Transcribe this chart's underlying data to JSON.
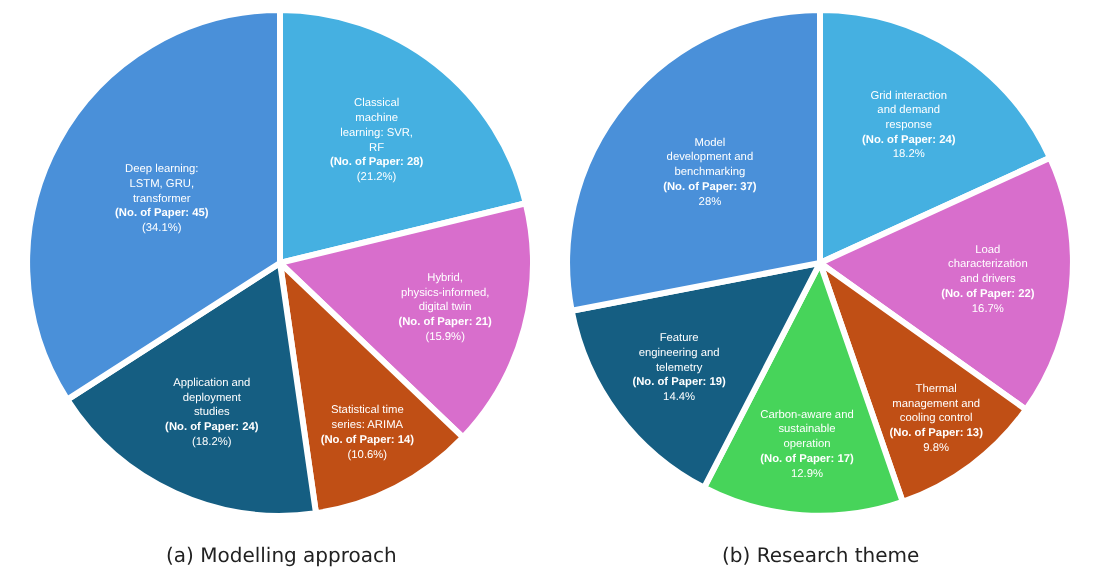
{
  "chart_data": [
    {
      "type": "pie",
      "title": "(a) Modelling approach",
      "categories": [
        "Classical machine learning: SVR, RF",
        "Hybrid, physics-informed, digital twin",
        "Statistical time series: ARIMA",
        "Application and deployment studies",
        "Deep learning: LSTM, GRU, transformer"
      ],
      "values": [
        28,
        21,
        14,
        24,
        45
      ],
      "value_labels": [
        "(No. of Paper: 28)\n(21.2%)",
        "(No. of Paper: 21)\n(15.9%)",
        "(No. of Paper: 14)\n(10.6%)",
        "(No. of Paper: 24)\n(18.2%)",
        "(No. of Paper: 45)\n(34.1%)"
      ],
      "colors": [
        "#45b0e1",
        "#d86ecc",
        "#c04f15",
        "#155e82",
        "#4a90d9"
      ]
    },
    {
      "type": "pie",
      "title": "(b) Research theme",
      "categories": [
        "Grid interaction and demand response",
        "Load characterization and drivers",
        "Thermal management and cooling control",
        "Carbon-aware and sustainable operation",
        "Feature engineering and telemetry",
        "Model development and benchmarking"
      ],
      "values": [
        24,
        22,
        13,
        17,
        19,
        37
      ],
      "value_labels": [
        "(No. of Paper: 24)\n18.2%",
        "(No. of Paper: 22)\n16.7%",
        "(No. of Paper: 13)\n9.8%",
        "(No. of Paper: 17)\n12.9%",
        "(No. of Paper: 19)\n14.4%",
        "(No. of Paper: 37)\n28%"
      ],
      "colors": [
        "#45b0e1",
        "#d86ecc",
        "#c04f15",
        "#47d45a",
        "#155e82",
        "#4a90d9"
      ]
    }
  ]
}
